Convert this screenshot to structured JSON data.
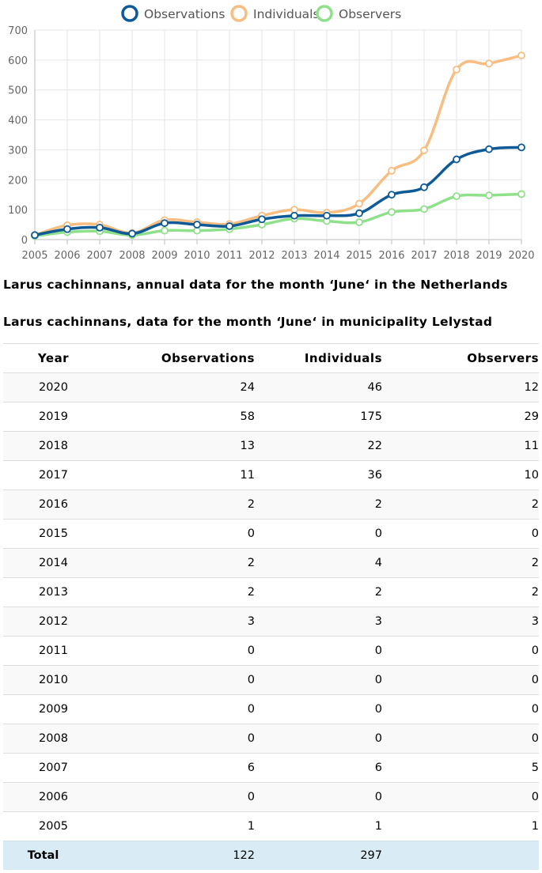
{
  "chart_data": {
    "type": "line",
    "legend": [
      "Observations",
      "Individuals",
      "Observers"
    ],
    "legend_position": "top",
    "x": [
      "2005",
      "2006",
      "2007",
      "2008",
      "2009",
      "2010",
      "2011",
      "2012",
      "2013",
      "2014",
      "2015",
      "2016",
      "2017",
      "2018",
      "2019",
      "2020"
    ],
    "ylim": [
      0,
      700
    ],
    "yticks": [
      0,
      100,
      200,
      300,
      400,
      500,
      600,
      700
    ],
    "grid": true,
    "series": [
      {
        "name": "Observations",
        "color": "#0d5a97",
        "values": [
          15,
          35,
          40,
          20,
          55,
          50,
          45,
          68,
          80,
          80,
          88,
          150,
          175,
          268,
          302,
          308
        ]
      },
      {
        "name": "Individuals",
        "color": "#f7bd81",
        "values": [
          15,
          48,
          50,
          22,
          65,
          58,
          52,
          80,
          100,
          90,
          120,
          230,
          298,
          568,
          588,
          615
        ]
      },
      {
        "name": "Observers",
        "color": "#8fe08a",
        "values": [
          12,
          25,
          28,
          15,
          30,
          30,
          35,
          50,
          70,
          62,
          58,
          92,
          102,
          145,
          148,
          152
        ]
      }
    ]
  },
  "captions": {
    "national": "Larus cachinnans, annual data for the month ‘June‘ in the Netherlands",
    "municipal": "Larus cachinnans, data for the month ‘June‘ in municipality Lelystad"
  },
  "table": {
    "headers": [
      "Year",
      "Observations",
      "Individuals",
      "Observers"
    ],
    "rows": [
      [
        "2020",
        "24",
        "46",
        "12"
      ],
      [
        "2019",
        "58",
        "175",
        "29"
      ],
      [
        "2018",
        "13",
        "22",
        "11"
      ],
      [
        "2017",
        "11",
        "36",
        "10"
      ],
      [
        "2016",
        "2",
        "2",
        "2"
      ],
      [
        "2015",
        "0",
        "0",
        "0"
      ],
      [
        "2014",
        "2",
        "4",
        "2"
      ],
      [
        "2013",
        "2",
        "2",
        "2"
      ],
      [
        "2012",
        "3",
        "3",
        "3"
      ],
      [
        "2011",
        "0",
        "0",
        "0"
      ],
      [
        "2010",
        "0",
        "0",
        "0"
      ],
      [
        "2009",
        "0",
        "0",
        "0"
      ],
      [
        "2008",
        "0",
        "0",
        "0"
      ],
      [
        "2007",
        "6",
        "6",
        "5"
      ],
      [
        "2006",
        "0",
        "0",
        "0"
      ],
      [
        "2005",
        "1",
        "1",
        "1"
      ]
    ],
    "total": {
      "label": "Total",
      "observations": "122",
      "individuals": "297",
      "observers": ""
    }
  }
}
